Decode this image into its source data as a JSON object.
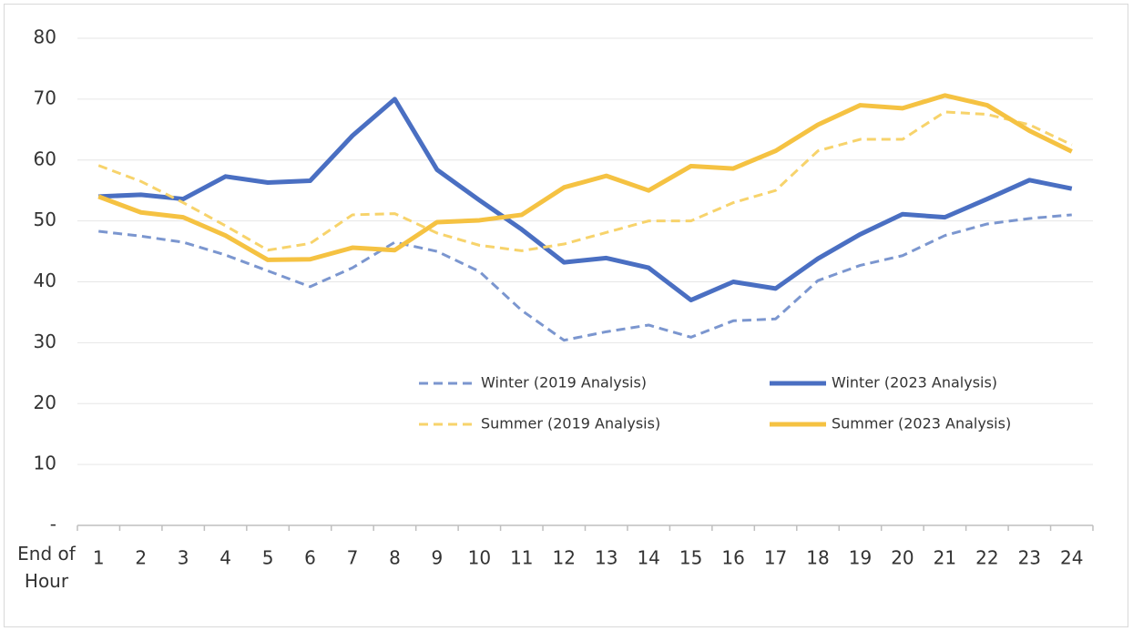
{
  "chart_data": {
    "type": "line",
    "x_label": "End of Hour",
    "categories": [
      "1",
      "2",
      "3",
      "4",
      "5",
      "6",
      "7",
      "8",
      "9",
      "10",
      "11",
      "12",
      "13",
      "14",
      "15",
      "16",
      "17",
      "18",
      "19",
      "20",
      "21",
      "22",
      "23",
      "24"
    ],
    "ylim": [
      0,
      80
    ],
    "yticks": [
      {
        "value": 0,
        "label": "-"
      },
      10,
      20,
      30,
      40,
      50,
      60,
      70,
      80
    ],
    "grid": true,
    "legend": "inside",
    "series": [
      {
        "name": "Winter (2019 Analysis)",
        "color": "#7b96cf",
        "dashed": true,
        "values": [
          48.3,
          47.5,
          46.5,
          44.4,
          41.8,
          39.2,
          42.3,
          46.5,
          45,
          41.7,
          35.3,
          30.4,
          31.8,
          32.9,
          30.9,
          33.6,
          33.9,
          40.2,
          42.7,
          44.3,
          47.6,
          49.5,
          50.4,
          51
        ]
      },
      {
        "name": "Winter (2023 Analysis)",
        "color": "#4a6fc2",
        "dashed": false,
        "values": [
          54,
          54.3,
          53.6,
          57.3,
          56.3,
          56.6,
          64,
          70,
          58.4,
          53.4,
          48.6,
          43.2,
          43.9,
          42.3,
          37,
          40,
          38.9,
          43.8,
          47.8,
          51.1,
          50.6,
          53.6,
          56.7,
          55.3
        ]
      },
      {
        "name": "Summer (2019 Analysis)",
        "color": "#f7d36b",
        "dashed": true,
        "values": [
          59.1,
          56.5,
          53,
          49.2,
          45.2,
          46.3,
          51,
          51.2,
          48,
          46,
          45.1,
          46.2,
          48.1,
          50,
          50,
          53,
          55,
          61.5,
          63.4,
          63.4,
          67.9,
          67.5,
          65.8,
          62.5
        ]
      },
      {
        "name": "Summer (2023 Analysis)",
        "color": "#f5c242",
        "dashed": false,
        "values": [
          54,
          51.4,
          50.6,
          47.6,
          43.6,
          43.7,
          45.6,
          45.2,
          49.8,
          50.1,
          51,
          55.5,
          57.4,
          55,
          59,
          58.6,
          61.5,
          65.8,
          69,
          68.5,
          70.6,
          69,
          64.8,
          61.4
        ]
      }
    ]
  }
}
